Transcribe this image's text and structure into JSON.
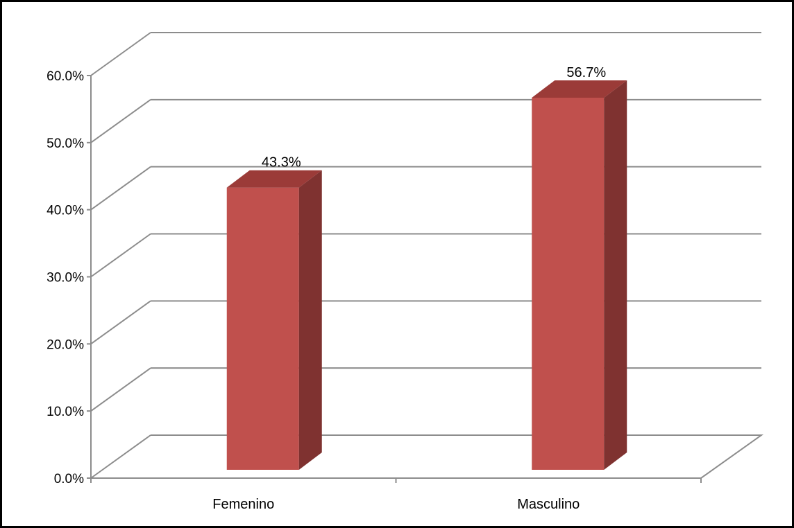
{
  "chart_data": {
    "type": "bar",
    "style": "3d-column",
    "categories": [
      "Femenino",
      "Masculino"
    ],
    "values": [
      43.3,
      56.7
    ],
    "data_labels": [
      "43.3%",
      "56.7%"
    ],
    "y_ticks": [
      "0.0%",
      "10.0%",
      "20.0%",
      "30.0%",
      "40.0%",
      "50.0%",
      "60.0%"
    ],
    "ylim": [
      0,
      60
    ],
    "ytick_step": 10,
    "grid": true,
    "legend": "none",
    "colors": {
      "bar_front": "#c0504d",
      "bar_top": "#9b3b38",
      "bar_side": "#7f3230",
      "grid": "#8c8c8c"
    }
  }
}
